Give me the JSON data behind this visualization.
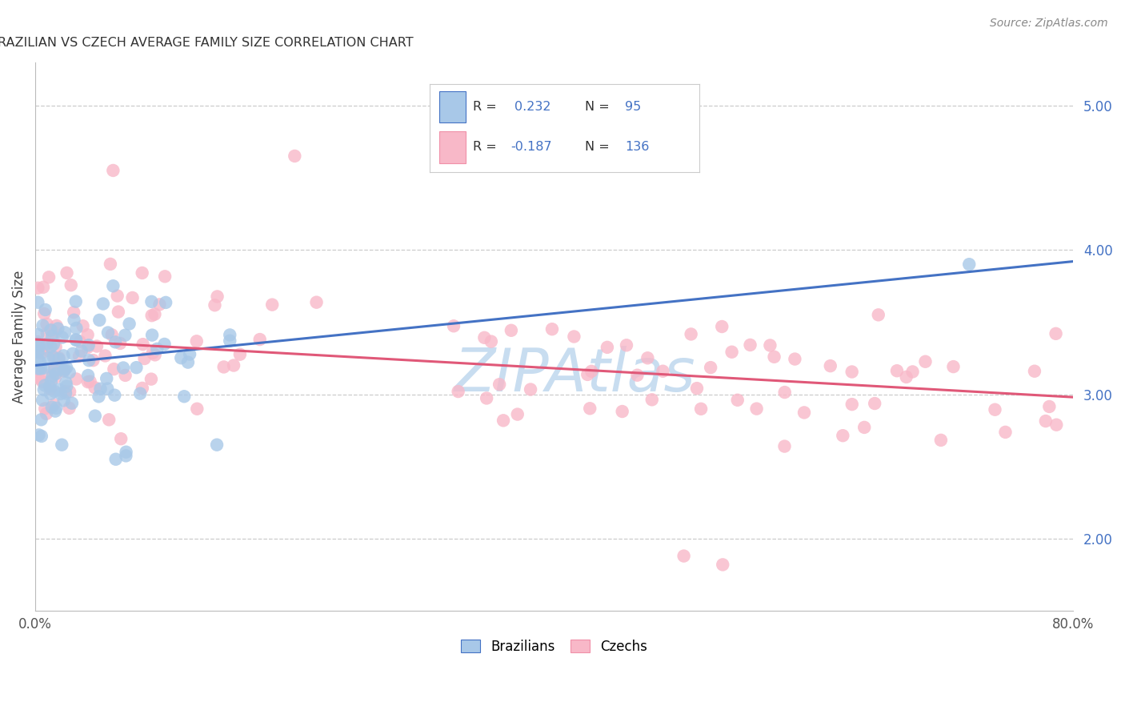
{
  "title": "BRAZILIAN VS CZECH AVERAGE FAMILY SIZE CORRELATION CHART",
  "source": "Source: ZipAtlas.com",
  "ylabel": "Average Family Size",
  "xlim": [
    0.0,
    0.8
  ],
  "ylim": [
    1.5,
    5.3
  ],
  "xtick_positions": [
    0.0,
    0.1,
    0.2,
    0.3,
    0.4,
    0.5,
    0.6,
    0.7,
    0.8
  ],
  "xticklabels": [
    "0.0%",
    "",
    "",
    "",
    "",
    "",
    "",
    "",
    "80.0%"
  ],
  "right_yticks": [
    2.0,
    3.0,
    4.0,
    5.0
  ],
  "right_yticklabels": [
    "2.00",
    "3.00",
    "4.00",
    "5.00"
  ],
  "brazil_fill_color": "#a8c8e8",
  "brazil_edge_color": "#7aabdb",
  "czech_fill_color": "#f8b8c8",
  "czech_edge_color": "#f090a8",
  "brazil_line_color": "#4472c4",
  "czech_line_color": "#e05878",
  "brazil_R": 0.232,
  "czech_R": -0.187,
  "brazil_N": 95,
  "czech_N": 136,
  "brazil_intercept": 3.2,
  "brazil_slope": 0.9,
  "czech_intercept": 3.38,
  "czech_slope": -0.5,
  "watermark_color": "#c8ddf0",
  "legend_text_color": "#4472c4",
  "legend_border_color": "#cccccc",
  "background_color": "#ffffff",
  "grid_color": "#cccccc",
  "title_color": "#333333",
  "source_color": "#888888",
  "ylabel_color": "#444444",
  "tick_color": "#555555"
}
